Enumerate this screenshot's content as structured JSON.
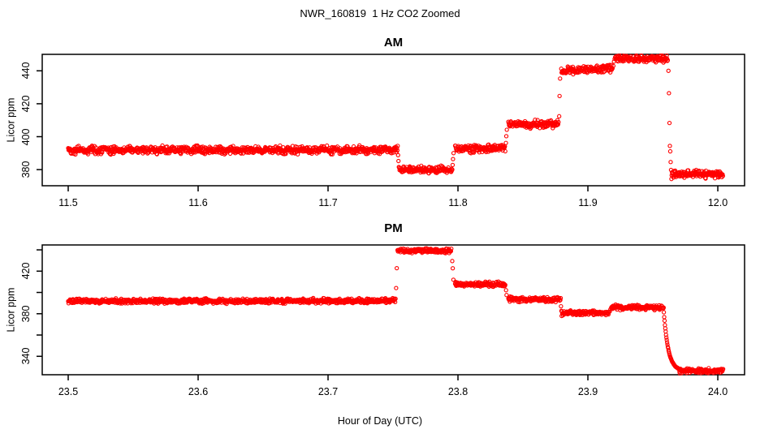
{
  "title": "NWR_160819  1 Hz CO2 Zoomed",
  "xlabel": "Hour of Day (UTC)",
  "style": {
    "point_color": "#FF0000",
    "axis_color": "#000000",
    "background": "#FFFFFF",
    "marker": "open-circle",
    "noise_ppm": 1.1
  },
  "chart_data": [
    {
      "type": "scatter",
      "title": "AM",
      "ylabel": "Licor ppm",
      "sample_rate_hz": 1,
      "xlim": [
        11.48,
        12.0206
      ],
      "ylim": [
        370.2,
        450.0
      ],
      "xticks": [
        11.5,
        11.6,
        11.7,
        11.8,
        11.9,
        12.0
      ],
      "xtick_labels": [
        "11.5",
        "11.6",
        "11.7",
        "11.8",
        "11.9",
        "12.0"
      ],
      "yticks": [
        380,
        400,
        420,
        440
      ],
      "ytick_labels": [
        "380",
        "400",
        "420",
        "440"
      ],
      "steps": [
        {
          "t0": 11.5,
          "t1": 11.7535,
          "v0": 391.8,
          "v1": 392.0
        },
        {
          "t0": 11.7548,
          "t1": 11.7955,
          "v0": 379.8,
          "v1": 380.0
        },
        {
          "t0": 11.7978,
          "t1": 11.8365,
          "v0": 392.6,
          "v1": 393.0
        },
        {
          "t0": 11.8388,
          "t1": 11.8775,
          "v0": 407.5,
          "v1": 407.7
        },
        {
          "t0": 11.8795,
          "t1": 11.919,
          "v0": 439.9,
          "v1": 441.5
        },
        {
          "t0": 11.9215,
          "t1": 11.9615,
          "v0": 447.8,
          "v1": 446.9
        },
        {
          "t0": 11.9645,
          "t1": 12.004,
          "v0": 377.4,
          "v1": 377.2
        }
      ],
      "transition_points": [
        [
          11.7539,
          388.8
        ],
        [
          11.7542,
          385.2
        ],
        [
          11.7545,
          381.6
        ],
        [
          11.7959,
          382.8
        ],
        [
          11.7962,
          386.4
        ],
        [
          11.7966,
          390.0
        ],
        [
          11.8369,
          396.2
        ],
        [
          11.8372,
          400.3
        ],
        [
          11.8376,
          404.2
        ],
        [
          11.8779,
          412.4
        ],
        [
          11.8782,
          424.7
        ],
        [
          11.8786,
          435.3
        ],
        [
          11.9196,
          443.0
        ],
        [
          11.9201,
          445.6
        ],
        [
          11.9206,
          447.2
        ],
        [
          11.921,
          448.3
        ],
        [
          11.962,
          440.0
        ],
        [
          11.9624,
          426.4
        ],
        [
          11.9628,
          408.3
        ],
        [
          11.9631,
          394.4
        ],
        [
          11.9634,
          391.1
        ],
        [
          11.9637,
          384.6
        ],
        [
          11.964,
          379.8
        ],
        [
          11.9643,
          374.3
        ]
      ]
    },
    {
      "type": "scatter",
      "title": "PM",
      "ylabel": "Licor ppm",
      "sample_rate_hz": 1,
      "xlim": [
        23.48,
        24.0206
      ],
      "ylim": [
        322.7,
        444.6
      ],
      "xticks": [
        23.5,
        23.6,
        23.7,
        23.8,
        23.9,
        24.0
      ],
      "xtick_labels": [
        "23.5",
        "23.6",
        "23.7",
        "23.8",
        "23.9",
        "24.0"
      ],
      "yticks": [
        340,
        360,
        380,
        400,
        420,
        440
      ],
      "ytick_labels": [
        "340",
        "",
        "380",
        "",
        "420",
        ""
      ],
      "steps": [
        {
          "t0": 23.5,
          "t1": 23.752,
          "v0": 391.9,
          "v1": 392.1
        },
        {
          "t0": 23.7535,
          "t1": 23.795,
          "v0": 439.6,
          "v1": 439.2
        },
        {
          "t0": 23.7978,
          "t1": 23.8365,
          "v0": 407.8,
          "v1": 407.5
        },
        {
          "t0": 23.8388,
          "t1": 23.879,
          "v0": 393.5,
          "v1": 393.0
        },
        {
          "t0": 23.88,
          "t1": 23.916,
          "v0": 381.0,
          "v1": 380.8
        },
        {
          "t0": 23.918,
          "t1": 23.9582,
          "v0": 385.9,
          "v1": 385.7
        },
        {
          "t0": 23.9705,
          "t1": 24.004,
          "v0": 326.4,
          "v1": 326.3
        }
      ],
      "transition_points": [
        [
          23.7524,
          404.1
        ],
        [
          23.7529,
          422.8
        ],
        [
          23.7956,
          429.5
        ],
        [
          23.796,
          422.7
        ],
        [
          23.7965,
          411.9
        ],
        [
          23.837,
          402.1
        ],
        [
          23.8374,
          397.6
        ],
        [
          23.8793,
          387.0
        ],
        [
          23.8796,
          382.7
        ],
        [
          23.8798,
          377.9
        ],
        [
          23.9168,
          382.0
        ],
        [
          23.9173,
          384.0
        ]
      ],
      "decay": {
        "t0": 23.9582,
        "t1": 23.9705,
        "start": 385.7,
        "asymptote": 326.2,
        "tau": 0.0035
      }
    }
  ]
}
